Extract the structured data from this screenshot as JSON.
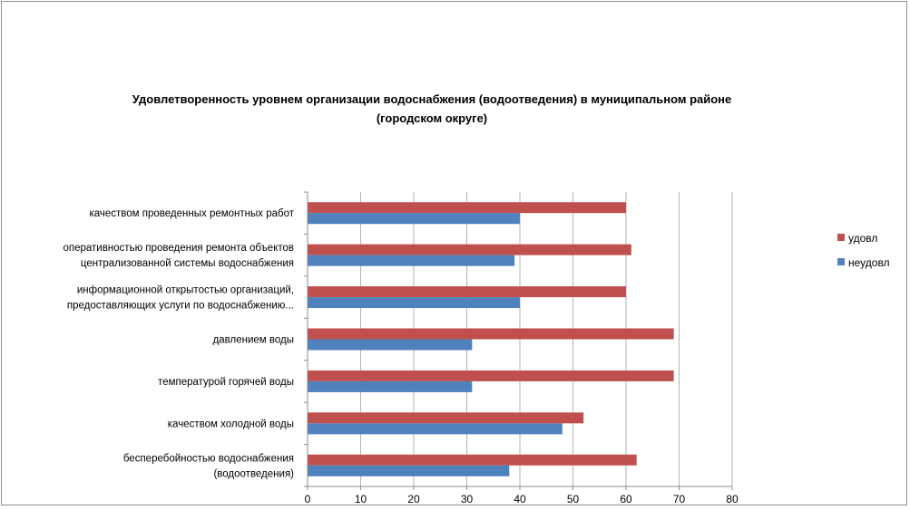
{
  "chart_data": {
    "type": "bar",
    "orientation": "horizontal",
    "title_lines": [
      "Удовлетворенность уровнем организации водоснабжения (водоотведения) в муниципальном районе",
      "(городском округе)"
    ],
    "categories": [
      [
        "качеством проведенных ремонтных работ"
      ],
      [
        "оперативностью проведения ремонта объектов",
        "централизованной системы водоснабжения"
      ],
      [
        "информационной открытостью организаций,",
        "предоставляющих услуги по водоснабжению..."
      ],
      [
        "давлением воды"
      ],
      [
        "температурой горячей воды"
      ],
      [
        "качеством холодной воды"
      ],
      [
        "бесперебойностью водоснабжения",
        "(водоотведения)"
      ]
    ],
    "series": [
      {
        "name": "удовл",
        "color": "#c0504d",
        "values": [
          60,
          61,
          60,
          69,
          69,
          52,
          62
        ]
      },
      {
        "name": "неудовл",
        "color": "#4f81bd",
        "values": [
          40,
          39,
          40,
          31,
          31,
          48,
          38
        ]
      }
    ],
    "xlim": [
      0,
      80
    ],
    "xticks": [
      "0",
      "10",
      "20",
      "30",
      "40",
      "50",
      "60",
      "70",
      "80"
    ],
    "grid": true,
    "legend_position": "right"
  }
}
